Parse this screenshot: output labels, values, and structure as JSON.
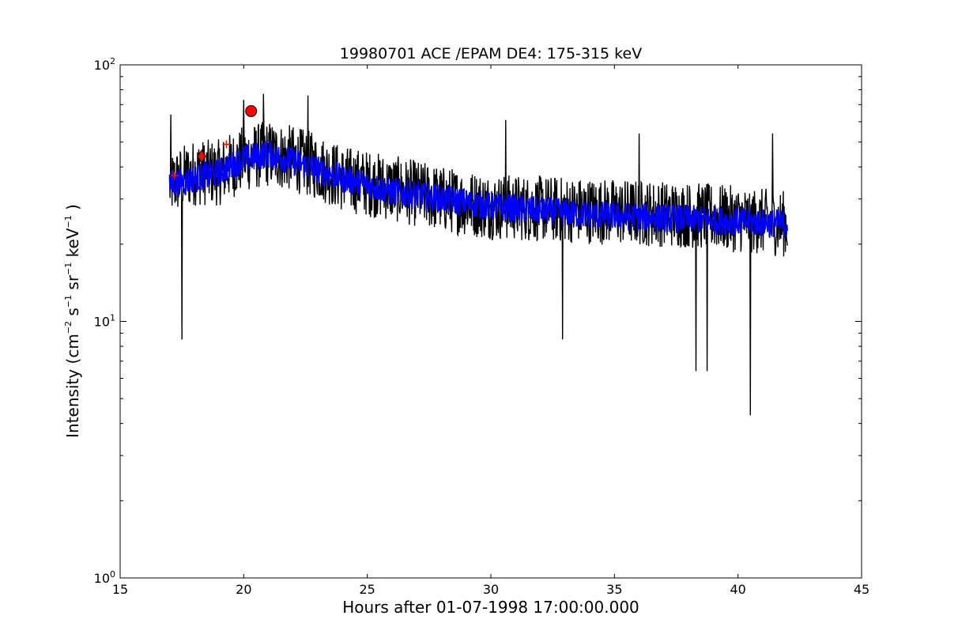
{
  "chart_data": {
    "type": "line",
    "title": "19980701 ACE /EPAM DE4: 175-315 keV",
    "xlabel": "Hours after 01-07-1998 17:00:00.000",
    "ylabel": {
      "prefix": "Intensity (cm",
      "exp1": "−2",
      "s": " s",
      "exp2": "−1",
      "sr": " sr",
      "exp3": "−1",
      "kev": " keV",
      "exp4": "−1",
      "suffix": " )"
    },
    "xlim": [
      15,
      45
    ],
    "ylim": [
      1,
      100
    ],
    "yscale": "log",
    "grid": false,
    "x_ticks": [
      15,
      20,
      25,
      30,
      35,
      40,
      45
    ],
    "y_ticks": [
      {
        "value": 1,
        "base": "10",
        "exp": "0"
      },
      {
        "value": 10,
        "base": "10",
        "exp": "1"
      },
      {
        "value": 100,
        "base": "10",
        "exp": "2"
      }
    ],
    "series": [
      {
        "style": "raw",
        "color": "#000000",
        "x_range": [
          17.0,
          42.0
        ],
        "trend": [
          [
            17.0,
            34
          ],
          [
            18.0,
            38
          ],
          [
            19.0,
            38
          ],
          [
            20.0,
            43
          ],
          [
            21.0,
            45
          ],
          [
            22.0,
            43
          ],
          [
            23.0,
            40
          ],
          [
            24.0,
            36
          ],
          [
            26.0,
            33
          ],
          [
            28.0,
            30
          ],
          [
            30.0,
            28
          ],
          [
            34.0,
            27
          ],
          [
            38.0,
            26
          ],
          [
            42.0,
            24
          ]
        ],
        "spikes": [
          [
            17.05,
            64
          ],
          [
            17.5,
            8.5
          ],
          [
            20.0,
            73
          ],
          [
            20.8,
            77
          ],
          [
            22.6,
            76
          ],
          [
            30.6,
            61
          ],
          [
            32.9,
            8.5
          ],
          [
            36.0,
            54
          ],
          [
            38.3,
            6.4
          ],
          [
            38.75,
            6.4
          ],
          [
            40.5,
            4.3
          ],
          [
            41.4,
            54
          ]
        ]
      },
      {
        "style": "smoothed",
        "color": "#0000ff",
        "x_range": [
          17.0,
          42.0
        ],
        "trend": [
          [
            17.0,
            34
          ],
          [
            18.0,
            36
          ],
          [
            19.0,
            38
          ],
          [
            20.0,
            43
          ],
          [
            21.0,
            45
          ],
          [
            22.0,
            42
          ],
          [
            23.0,
            39
          ],
          [
            24.0,
            36
          ],
          [
            26.0,
            32
          ],
          [
            28.0,
            30
          ],
          [
            30.0,
            28
          ],
          [
            34.0,
            26
          ],
          [
            38.0,
            25
          ],
          [
            42.0,
            24
          ]
        ]
      }
    ],
    "markers": [
      {
        "shape": "circle",
        "color": "#ff0000",
        "x": 20.3,
        "y": 66
      },
      {
        "shape": "diamond",
        "color": "#ff0000",
        "x": 18.3,
        "y": 44
      },
      {
        "shape": "plus",
        "color": "#ff0000",
        "x": 19.3,
        "y": 49
      },
      {
        "shape": "plus",
        "color": "#ff0000",
        "x": 17.2,
        "y": 37
      }
    ]
  }
}
